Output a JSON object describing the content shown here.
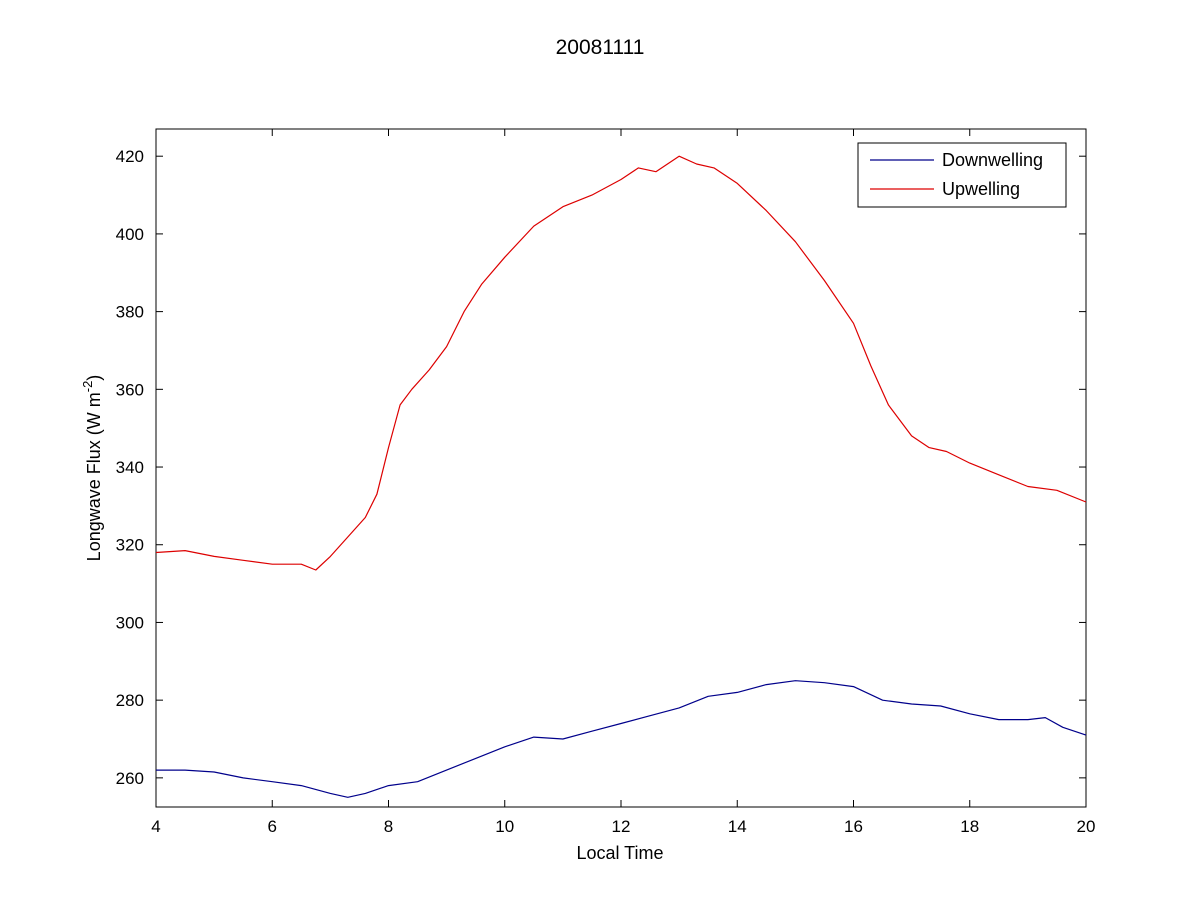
{
  "chart_data": {
    "type": "line",
    "title": "20081111",
    "xlabel": "Local Time",
    "ylabel_main": "Longwave Flux (W m",
    "ylabel_exponent": "-2",
    "ylabel_close": ")",
    "xlim": [
      4,
      20
    ],
    "ylim": [
      252.5,
      427
    ],
    "xticks": [
      4,
      6,
      8,
      10,
      12,
      14,
      16,
      18,
      20
    ],
    "yticks": [
      260,
      280,
      300,
      320,
      340,
      360,
      380,
      400,
      420
    ],
    "grid": false,
    "legend_position": "top-right",
    "series": [
      {
        "name": "Downwelling",
        "color": "#00008b",
        "x": [
          4.0,
          4.5,
          5.0,
          5.5,
          6.0,
          6.5,
          7.0,
          7.3,
          7.6,
          8.0,
          8.5,
          9.0,
          9.5,
          10.0,
          10.5,
          11.0,
          11.5,
          12.0,
          12.5,
          13.0,
          13.5,
          14.0,
          14.5,
          15.0,
          15.5,
          16.0,
          16.5,
          17.0,
          17.5,
          18.0,
          18.5,
          19.0,
          19.3,
          19.6,
          20.0
        ],
        "y": [
          262,
          262,
          261.5,
          260,
          259,
          258,
          256,
          255,
          256,
          258,
          259,
          262,
          265,
          268,
          270.5,
          270,
          272,
          274,
          276,
          278,
          281,
          282,
          284,
          285,
          284.5,
          283.5,
          280,
          279,
          278.5,
          276.5,
          275,
          275,
          275.5,
          273,
          271
        ]
      },
      {
        "name": "Upwelling",
        "color": "#dd0000",
        "x": [
          4.0,
          4.5,
          5.0,
          5.5,
          6.0,
          6.5,
          6.75,
          7.0,
          7.3,
          7.6,
          7.8,
          8.0,
          8.2,
          8.4,
          8.7,
          9.0,
          9.3,
          9.6,
          10.0,
          10.5,
          11.0,
          11.5,
          12.0,
          12.3,
          12.6,
          13.0,
          13.3,
          13.6,
          14.0,
          14.5,
          15.0,
          15.5,
          16.0,
          16.3,
          16.6,
          17.0,
          17.3,
          17.6,
          18.0,
          18.5,
          19.0,
          19.5,
          20.0
        ],
        "y": [
          318,
          318.5,
          317,
          316,
          315,
          315,
          313.5,
          317,
          322,
          327,
          333,
          345,
          356,
          360,
          365,
          371,
          380,
          387,
          394,
          402,
          407,
          410,
          414,
          417,
          416,
          420,
          418,
          417,
          413,
          406,
          398,
          388,
          377,
          366,
          356,
          348,
          345,
          344,
          341,
          338,
          335,
          334,
          331
        ]
      }
    ]
  }
}
